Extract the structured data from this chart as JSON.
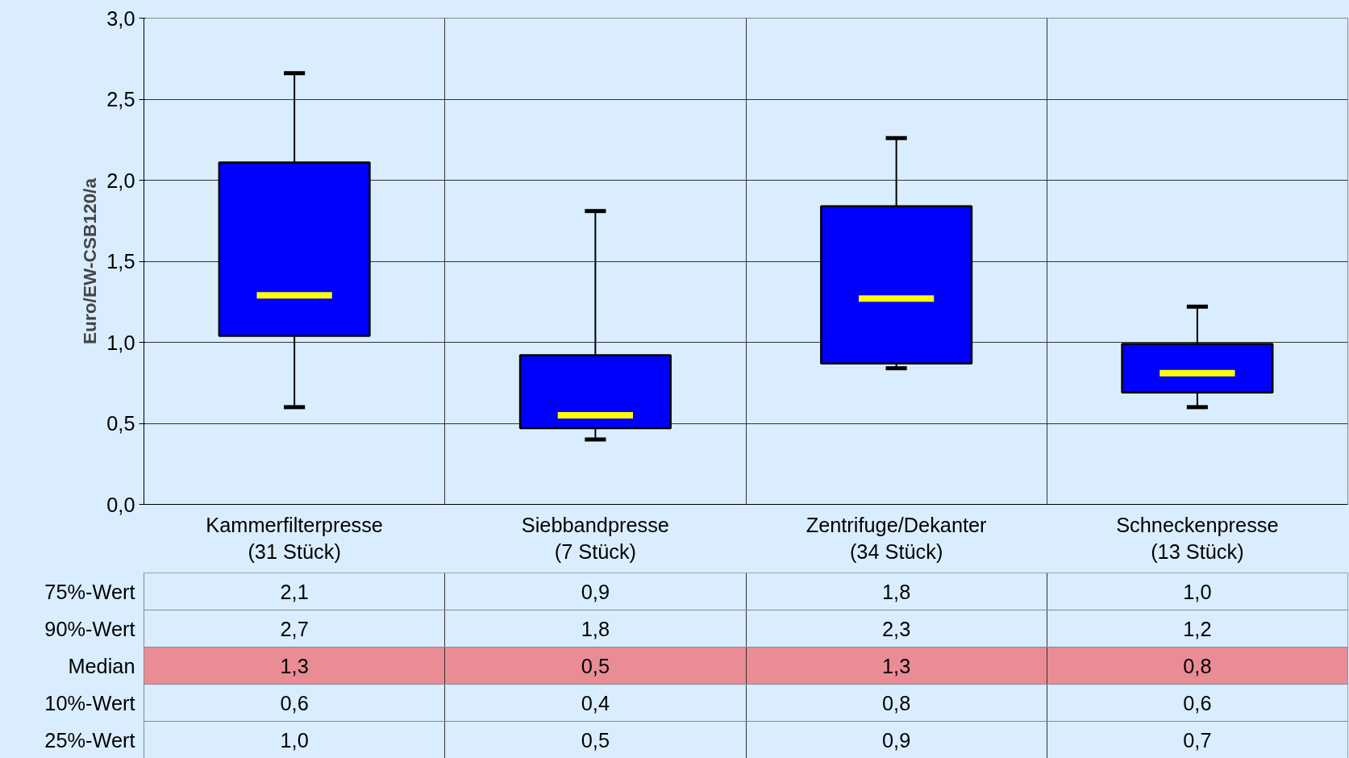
{
  "chart_data": [
    {
      "type": "box",
      "ylabel": "Euro/EW-CSB120/a",
      "categories": [
        "Kammerfilterpresse\n(31 Stück)",
        "Siebbandpresse\n(7 Stück)",
        "Zentrifuge/Dekanter\n(34 Stück)",
        "Schneckenpresse\n(13 Stück)"
      ],
      "series": [
        {
          "color": "#0000ff",
          "boxes": [
            {
              "low": 0.6,
              "q1": 1.04,
              "median": 1.29,
              "q3": 2.11,
              "high": 2.66
            },
            {
              "low": 0.4,
              "q1": 0.47,
              "median": 0.55,
              "q3": 0.92,
              "high": 1.81
            },
            {
              "low": 0.84,
              "q1": 0.87,
              "median": 1.27,
              "q3": 1.84,
              "high": 2.26
            },
            {
              "low": 0.6,
              "q1": 0.69,
              "median": 0.81,
              "q3": 0.99,
              "high": 1.22
            }
          ]
        }
      ],
      "ylim": [
        0,
        3
      ],
      "yticks": [
        {
          "value": 0,
          "label": "0,0"
        },
        {
          "value": 0.5,
          "label": "0,5"
        },
        {
          "value": 1,
          "label": "1,0"
        },
        {
          "value": 1.5,
          "label": "1,5"
        },
        {
          "value": 2,
          "label": "2,0"
        },
        {
          "value": 2.5,
          "label": "2,5"
        },
        {
          "value": 3,
          "label": "3,0"
        }
      ],
      "grid": true
    },
    {
      "type": "other",
      "categories": [
        null,
        null,
        null,
        null
      ],
      "y_categories": [
        "75%-Wert",
        "90%-Wert",
        "Median",
        "10%-Wert",
        "25%-Wert"
      ],
      "annotations": [
        "2,1",
        "0,9",
        "1,8",
        "1,0",
        "2,7",
        "1,8",
        "2,3",
        "1,2",
        "1,3",
        "0,5",
        "1,3",
        "0,8",
        "0,6",
        "0,4",
        "0,8",
        "0,6",
        "1,0",
        "0,5",
        "0,9",
        "0,7"
      ]
    }
  ]
}
